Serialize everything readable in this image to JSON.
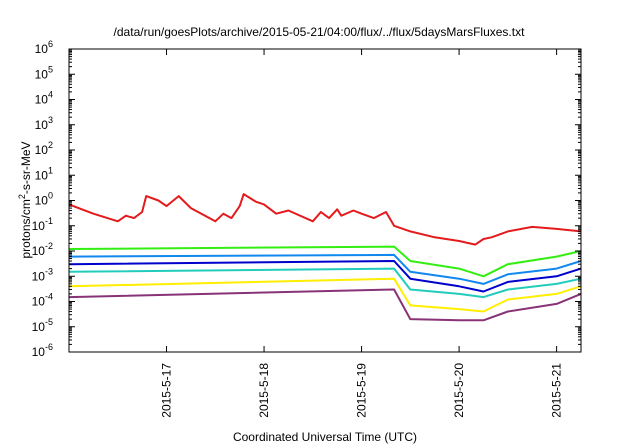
{
  "chart_data": {
    "type": "line",
    "title": "/data/run/goesPlots/archive/2015-05-21/04:00/flux/../flux/5daysMarsFluxes.txt",
    "xlabel": "Coordinated Universal Time (UTC)",
    "ylabel": {
      "prefix": "protons/cm",
      "sup": "2",
      "suffix": "-s-sr-MeV"
    },
    "yscale": "log",
    "ylim": [
      1e-06,
      1000000.0
    ],
    "xlim": [
      "2015-05-16 00:00",
      "2015-05-21 06:00"
    ],
    "grid": false,
    "legend": "none",
    "y_ticks": [
      {
        "value": 1e-06,
        "base": "10",
        "exp": "-6"
      },
      {
        "value": 1e-05,
        "base": "10",
        "exp": "-5"
      },
      {
        "value": 0.0001,
        "base": "10",
        "exp": "-4"
      },
      {
        "value": 0.001,
        "base": "10",
        "exp": "-3"
      },
      {
        "value": 0.01,
        "base": "10",
        "exp": "-2"
      },
      {
        "value": 0.1,
        "base": "10",
        "exp": "-1"
      },
      {
        "value": 1.0,
        "base": "10",
        "exp": "0"
      },
      {
        "value": 10.0,
        "base": "10",
        "exp": "1"
      },
      {
        "value": 100.0,
        "base": "10",
        "exp": "2"
      },
      {
        "value": 1000.0,
        "base": "10",
        "exp": "3"
      },
      {
        "value": 10000.0,
        "base": "10",
        "exp": "4"
      },
      {
        "value": 100000.0,
        "base": "10",
        "exp": "5"
      },
      {
        "value": 1000000.0,
        "base": "10",
        "exp": "6"
      }
    ],
    "x_ticks": [
      {
        "value": "2015-05-17 00:00",
        "label": "2015-5-17"
      },
      {
        "value": "2015-05-18 00:00",
        "label": "2015-5-18"
      },
      {
        "value": "2015-05-19 00:00",
        "label": "2015-5-19"
      },
      {
        "value": "2015-05-20 00:00",
        "label": "2015-5-20"
      },
      {
        "value": "2015-05-21 00:00",
        "label": "2015-5-21"
      }
    ],
    "series": [
      {
        "color": "#e41a1c",
        "x": [
          "2015-05-16 00:00",
          "2015-05-16 06:00",
          "2015-05-16 12:00",
          "2015-05-16 14:00",
          "2015-05-16 16:00",
          "2015-05-16 18:00",
          "2015-05-16 19:00",
          "2015-05-16 22:00",
          "2015-05-17 00:00",
          "2015-05-17 03:00",
          "2015-05-17 06:00",
          "2015-05-17 12:00",
          "2015-05-17 14:00",
          "2015-05-17 16:00",
          "2015-05-17 18:00",
          "2015-05-17 19:00",
          "2015-05-17 22:00",
          "2015-05-18 00:00",
          "2015-05-18 03:00",
          "2015-05-18 06:00",
          "2015-05-18 12:00",
          "2015-05-18 14:00",
          "2015-05-18 16:00",
          "2015-05-18 18:00",
          "2015-05-18 19:00",
          "2015-05-18 22:00",
          "2015-05-19 00:00",
          "2015-05-19 03:00",
          "2015-05-19 06:00",
          "2015-05-19 08:00",
          "2015-05-19 12:00",
          "2015-05-19 18:00",
          "2015-05-20 00:00",
          "2015-05-20 04:00",
          "2015-05-20 06:00",
          "2015-05-20 08:00",
          "2015-05-20 12:00",
          "2015-05-20 18:00",
          "2015-05-21 00:00",
          "2015-05-21 06:00"
        ],
        "values": [
          0.7,
          0.3,
          0.15,
          0.25,
          0.2,
          0.35,
          1.5,
          1.0,
          0.6,
          1.5,
          0.5,
          0.15,
          0.3,
          0.2,
          0.6,
          1.8,
          0.9,
          0.7,
          0.3,
          0.4,
          0.15,
          0.35,
          0.2,
          0.45,
          0.25,
          0.4,
          0.3,
          0.2,
          0.35,
          0.1,
          0.06,
          0.035,
          0.025,
          0.018,
          0.03,
          0.035,
          0.06,
          0.09,
          0.075,
          0.06
        ]
      },
      {
        "color": "#33ee11",
        "x": [
          "2015-05-16 00:00",
          "2015-05-19 08:00",
          "2015-05-19 12:00",
          "2015-05-20 00:00",
          "2015-05-20 06:00",
          "2015-05-20 12:00",
          "2015-05-21 00:00",
          "2015-05-21 06:00"
        ],
        "values": [
          0.012,
          0.015,
          0.004,
          0.002,
          0.001,
          0.003,
          0.006,
          0.01
        ]
      },
      {
        "color": "#1188ee",
        "x": [
          "2015-05-16 00:00",
          "2015-05-19 08:00",
          "2015-05-19 12:00",
          "2015-05-20 00:00",
          "2015-05-20 06:00",
          "2015-05-20 12:00",
          "2015-05-21 00:00",
          "2015-05-21 06:00"
        ],
        "values": [
          0.006,
          0.007,
          0.0015,
          0.0008,
          0.0005,
          0.0012,
          0.002,
          0.004
        ]
      },
      {
        "color": "#0000cc",
        "x": [
          "2015-05-16 00:00",
          "2015-05-19 08:00",
          "2015-05-19 12:00",
          "2015-05-20 00:00",
          "2015-05-20 06:00",
          "2015-05-20 12:00",
          "2015-05-21 00:00",
          "2015-05-21 06:00"
        ],
        "values": [
          0.003,
          0.004,
          0.0008,
          0.0004,
          0.00025,
          0.0006,
          0.001,
          0.002
        ]
      },
      {
        "color": "#22ccbb",
        "x": [
          "2015-05-16 00:00",
          "2015-05-19 08:00",
          "2015-05-19 12:00",
          "2015-05-20 00:00",
          "2015-05-20 06:00",
          "2015-05-20 12:00",
          "2015-05-21 00:00",
          "2015-05-21 06:00"
        ],
        "values": [
          0.0015,
          0.002,
          0.0003,
          0.0002,
          0.00015,
          0.0003,
          0.0005,
          0.0008
        ]
      },
      {
        "color": "#ffee00",
        "x": [
          "2015-05-16 00:00",
          "2015-05-19 08:00",
          "2015-05-19 12:00",
          "2015-05-20 00:00",
          "2015-05-20 06:00",
          "2015-05-20 12:00",
          "2015-05-21 00:00",
          "2015-05-21 06:00"
        ],
        "values": [
          0.0004,
          0.0008,
          7e-05,
          5e-05,
          4e-05,
          0.00012,
          0.0002,
          0.0004
        ]
      },
      {
        "color": "#883377",
        "x": [
          "2015-05-16 00:00",
          "2015-05-19 08:00",
          "2015-05-19 12:00",
          "2015-05-20 00:00",
          "2015-05-20 06:00",
          "2015-05-20 12:00",
          "2015-05-21 00:00",
          "2015-05-21 06:00"
        ],
        "values": [
          0.00015,
          0.0003,
          2e-05,
          1.8e-05,
          1.8e-05,
          4e-05,
          8e-05,
          0.0002
        ]
      }
    ]
  }
}
